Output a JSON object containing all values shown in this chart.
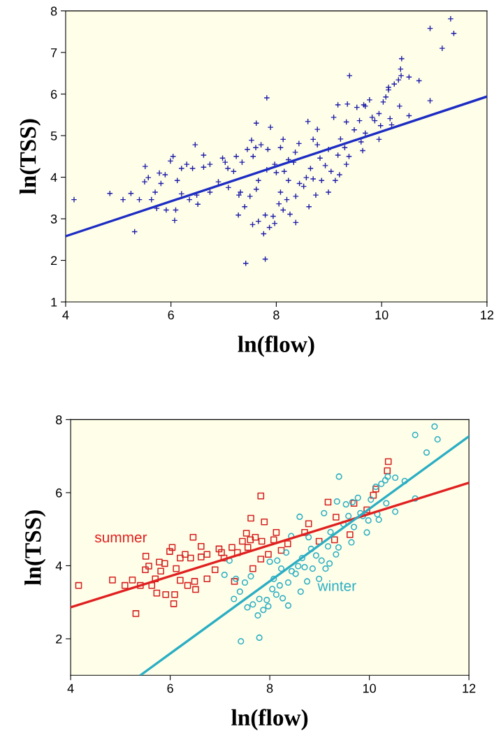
{
  "chart_data": [
    {
      "type": "scatter",
      "xlabel": "ln(flow)",
      "ylabel": "ln(TSS)",
      "xlim": [
        4,
        12
      ],
      "ylim": [
        1,
        8
      ],
      "xticks": [
        4,
        6,
        8,
        10,
        12
      ],
      "yticks": [
        1,
        2,
        3,
        4,
        5,
        6,
        7,
        8
      ],
      "grid": false,
      "legend": false,
      "series": [
        {
          "marker": "cross",
          "color": "#1c1ca8",
          "x": [
            4.16,
            4.84,
            5.09,
            5.24,
            5.31,
            5.4,
            5.51,
            5.5,
            5.57,
            5.63,
            5.7,
            5.73,
            5.78,
            5.81,
            5.89,
            5.91,
            5.99,
            6.04,
            6.07,
            6.09,
            6.12,
            6.2,
            6.2,
            6.3,
            6.35,
            6.41,
            6.46,
            6.49,
            6.51,
            6.62,
            6.62,
            6.74,
            6.74,
            6.9,
            6.98,
            7.03,
            7.08,
            7.24,
            7.29,
            7.35,
            7.45,
            7.53,
            7.56,
            7.61,
            7.62,
            7.66,
            7.71,
            7.82,
            7.82,
            7.84,
            7.89,
            7.97,
            8.08,
            8.13,
            8.23,
            8.36,
            8.7,
            8.78,
            8.99,
            9.17,
            9.3,
            9.33,
            9.61,
            9.69,
            9.95,
            10.08,
            10.13,
            10.36,
            10.38,
            7.42,
            7.79,
            7.09,
            7.19,
            7.28,
            7.32,
            7.4,
            7.5,
            7.55,
            7.62,
            7.66,
            7.76,
            7.79,
            7.87,
            7.94,
            7.97,
            8.0,
            8.05,
            8.08,
            8.13,
            8.15,
            8.2,
            8.23,
            8.26,
            8.33,
            8.37,
            8.37,
            8.43,
            8.44,
            8.52,
            8.57,
            8.6,
            8.62,
            8.65,
            8.7,
            8.75,
            8.78,
            8.83,
            8.86,
            8.93,
            8.99,
            9.04,
            9.09,
            9.12,
            9.17,
            9.2,
            9.22,
            9.33,
            9.35,
            9.38,
            9.39,
            9.48,
            9.53,
            9.58,
            9.64,
            9.66,
            9.69,
            9.77,
            9.82,
            9.87,
            9.95,
            9.98,
            10.03,
            10.13,
            10.16,
            10.19,
            10.24,
            10.32,
            10.34,
            10.37,
            10.52,
            10.52,
            10.71,
            10.92,
            10.92,
            11.15,
            11.31,
            11.37
          ],
          "values": [
            3.46,
            3.61,
            3.46,
            3.61,
            2.69,
            3.46,
            4.26,
            3.89,
            3.99,
            3.46,
            3.64,
            3.25,
            4.1,
            3.85,
            4.06,
            3.21,
            4.39,
            4.5,
            2.96,
            3.21,
            3.92,
            4.21,
            3.6,
            4.31,
            3.46,
            4.21,
            4.78,
            3.57,
            3.35,
            4.53,
            4.24,
            4.31,
            3.64,
            3.89,
            4.46,
            4.36,
            4.21,
            4.5,
            3.57,
            4.36,
            4.67,
            4.89,
            4.5,
            4.71,
            5.3,
            3.92,
            4.78,
            5.91,
            4.18,
            4.67,
            5.2,
            4.31,
            4.71,
            4.91,
            4.42,
            4.6,
            4.91,
            5.15,
            4.67,
            5.74,
            4.71,
            5.33,
            4.85,
            5.71,
            5.53,
            5.93,
            6.1,
            6.6,
            6.85,
            1.93,
            2.03,
            3.75,
            4.14,
            3.09,
            3.64,
            3.29,
            3.54,
            2.86,
            3.71,
            2.94,
            2.64,
            3.09,
            2.79,
            3.06,
            2.89,
            4.11,
            3.36,
            3.64,
            3.21,
            4.14,
            3.46,
            3.92,
            3.11,
            4.36,
            2.91,
            3.54,
            4.81,
            3.85,
            3.78,
            3.99,
            5.34,
            3.29,
            4.21,
            3.96,
            3.57,
            4.78,
            4.46,
            3.92,
            4.28,
            3.64,
            4.14,
            5.44,
            3.92,
            4.53,
            4.06,
            4.92,
            4.31,
            5.76,
            4.5,
            6.44,
            5.14,
            5.68,
            5.36,
            4.64,
            5.74,
            5.06,
            5.86,
            5.44,
            5.36,
            4.91,
            5.24,
            5.81,
            6.16,
            5.41,
            5.26,
            6.24,
            6.34,
            5.71,
            6.44,
            6.41,
            5.48,
            6.32,
            5.84,
            7.58,
            7.1,
            7.81,
            7.46
          ]
        },
        {
          "type": "line",
          "color": "#1c2cc4",
          "x": [
            4,
            12
          ],
          "values": [
            2.58,
            5.94
          ]
        }
      ]
    },
    {
      "type": "scatter",
      "xlabel": "ln(flow)",
      "ylabel": "ln(TSS)",
      "xlim": [
        4,
        12
      ],
      "ylim": [
        1,
        8
      ],
      "xticks": [
        4,
        6,
        8,
        10,
        12
      ],
      "yticks": [
        2,
        4,
        6,
        8
      ],
      "grid": false,
      "legend": false,
      "series": [
        {
          "marker": "square",
          "color": "#d42020",
          "x": [
            4.16,
            4.84,
            5.09,
            5.24,
            5.31,
            5.4,
            5.51,
            5.5,
            5.57,
            5.63,
            5.7,
            5.73,
            5.78,
            5.81,
            5.89,
            5.91,
            5.99,
            6.04,
            6.07,
            6.09,
            6.12,
            6.2,
            6.2,
            6.3,
            6.35,
            6.41,
            6.46,
            6.49,
            6.51,
            6.62,
            6.62,
            6.74,
            6.74,
            6.9,
            6.98,
            7.03,
            7.08,
            7.24,
            7.29,
            7.35,
            7.45,
            7.53,
            7.56,
            7.61,
            7.62,
            7.66,
            7.71,
            7.82,
            7.82,
            7.84,
            7.89,
            7.97,
            8.08,
            8.13,
            8.23,
            8.36,
            8.7,
            8.78,
            8.99,
            9.17,
            9.3,
            9.33,
            9.61,
            9.69,
            9.95,
            10.08,
            10.13,
            10.36,
            10.38
          ],
          "values": [
            3.46,
            3.61,
            3.46,
            3.61,
            2.69,
            3.46,
            4.26,
            3.89,
            3.99,
            3.46,
            3.64,
            3.25,
            4.1,
            3.85,
            4.06,
            3.21,
            4.39,
            4.5,
            2.96,
            3.21,
            3.92,
            4.21,
            3.6,
            4.31,
            3.46,
            4.21,
            4.78,
            3.57,
            3.35,
            4.53,
            4.24,
            4.31,
            3.64,
            3.89,
            4.46,
            4.36,
            4.21,
            4.5,
            3.57,
            4.36,
            4.67,
            4.89,
            4.5,
            4.71,
            5.3,
            3.92,
            4.78,
            5.91,
            4.18,
            4.67,
            5.2,
            4.31,
            4.71,
            4.91,
            4.42,
            4.6,
            4.91,
            5.15,
            4.67,
            5.74,
            4.71,
            5.33,
            4.85,
            5.71,
            5.53,
            5.93,
            6.1,
            6.6,
            6.85
          ]
        },
        {
          "marker": "circle",
          "color": "#2aaec4",
          "x": [
            7.42,
            7.79,
            7.09,
            7.19,
            7.28,
            7.32,
            7.4,
            7.5,
            7.55,
            7.62,
            7.66,
            7.76,
            7.79,
            7.87,
            7.94,
            7.97,
            8.0,
            8.05,
            8.08,
            8.13,
            8.15,
            8.2,
            8.23,
            8.26,
            8.33,
            8.37,
            8.37,
            8.43,
            8.44,
            8.52,
            8.57,
            8.6,
            8.62,
            8.65,
            8.7,
            8.75,
            8.78,
            8.83,
            8.86,
            8.93,
            8.99,
            9.04,
            9.09,
            9.12,
            9.17,
            9.2,
            9.22,
            9.33,
            9.35,
            9.38,
            9.39,
            9.48,
            9.53,
            9.58,
            9.64,
            9.66,
            9.69,
            9.77,
            9.82,
            9.87,
            9.95,
            9.98,
            10.03,
            10.13,
            10.16,
            10.19,
            10.24,
            10.32,
            10.34,
            10.37,
            10.52,
            10.52,
            10.71,
            10.92,
            10.92,
            11.15,
            11.31,
            11.37
          ],
          "values": [
            1.93,
            2.03,
            3.75,
            4.14,
            3.09,
            3.64,
            3.29,
            3.54,
            2.86,
            3.71,
            2.94,
            2.64,
            3.09,
            2.79,
            3.06,
            2.89,
            4.11,
            3.36,
            3.64,
            3.21,
            4.14,
            3.46,
            3.92,
            3.11,
            4.36,
            2.91,
            3.54,
            4.81,
            3.85,
            3.78,
            3.99,
            5.34,
            3.29,
            4.21,
            3.96,
            3.57,
            4.78,
            4.46,
            3.92,
            4.28,
            3.64,
            4.14,
            5.44,
            3.92,
            4.53,
            4.06,
            4.92,
            4.31,
            5.76,
            4.5,
            6.44,
            5.14,
            5.68,
            5.36,
            4.64,
            5.74,
            5.06,
            5.86,
            5.44,
            5.36,
            4.91,
            5.24,
            5.81,
            6.16,
            5.41,
            5.26,
            6.24,
            6.34,
            5.71,
            6.44,
            6.41,
            5.48,
            6.32,
            5.84,
            7.58,
            7.1,
            7.81,
            7.46
          ]
        },
        {
          "type": "line",
          "name": "summer",
          "color": "#e02020",
          "x": [
            4,
            12
          ],
          "values": [
            2.86,
            6.27
          ]
        },
        {
          "type": "line",
          "name": "winter",
          "color": "#2aaec4",
          "x": [
            5.4,
            12
          ],
          "values": [
            1.0,
            7.54
          ]
        }
      ]
    }
  ]
}
